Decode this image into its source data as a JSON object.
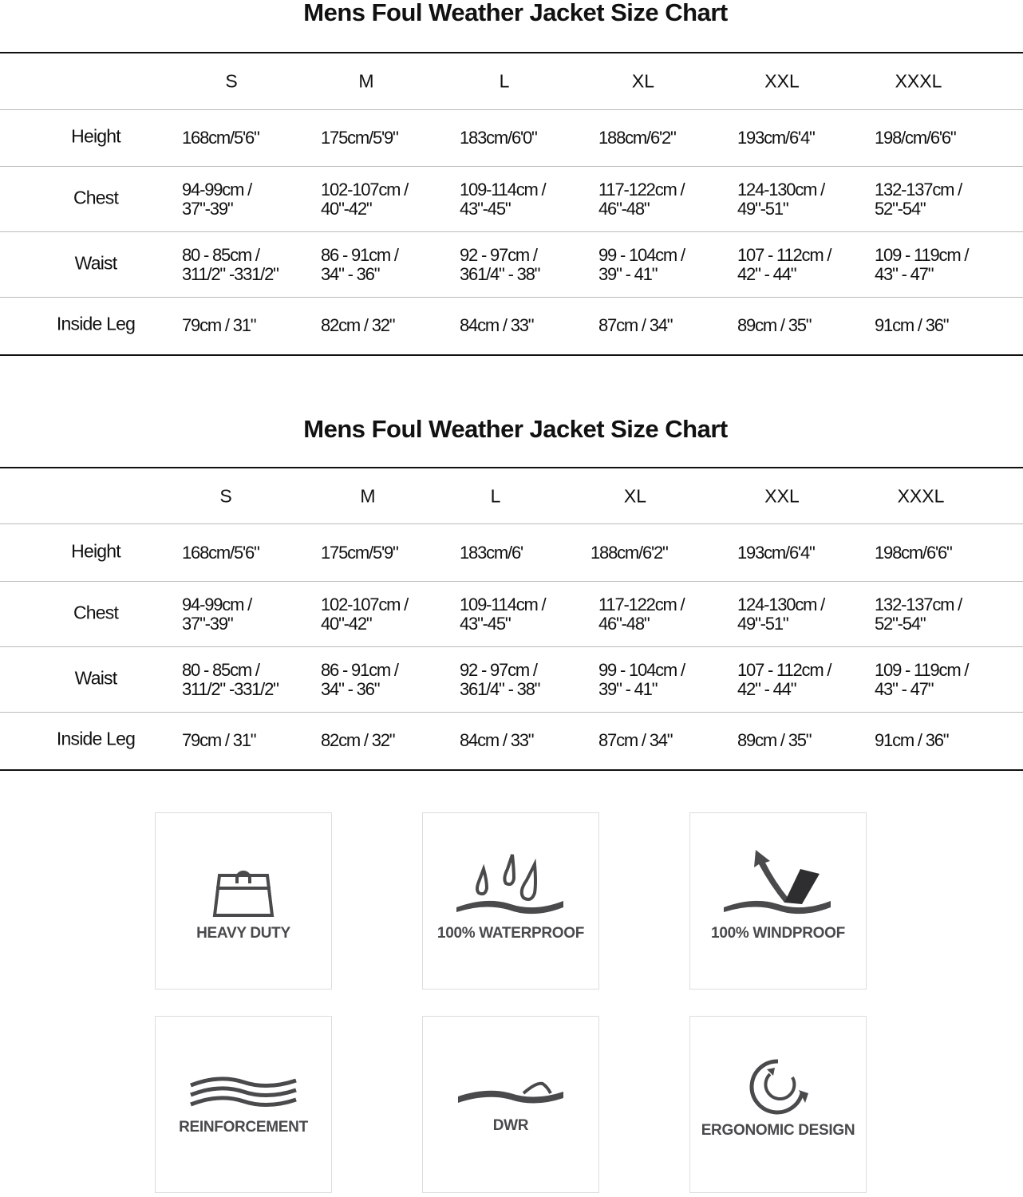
{
  "tables": [
    {
      "title": "Mens Foul Weather Jacket Size Chart",
      "sizes": [
        "S",
        "M",
        "L",
        "XL",
        "XXL",
        "XXXL"
      ],
      "rows": [
        {
          "label": "Height",
          "values": [
            [
              "168cm/5'6\""
            ],
            [
              "175cm/5'9\""
            ],
            [
              "183cm/6'0\""
            ],
            [
              "188cm/6'2\""
            ],
            [
              "193cm/6'4\""
            ],
            [
              "198/cm/6'6\""
            ]
          ]
        },
        {
          "label": "Chest",
          "values": [
            [
              "94-99cm /",
              "37\"-39\""
            ],
            [
              "102-107cm /",
              "40\"-42\""
            ],
            [
              "109-114cm /",
              "43\"-45\""
            ],
            [
              "117-122cm /",
              "46\"-48\""
            ],
            [
              "124-130cm /",
              "49\"-51\""
            ],
            [
              "132-137cm /",
              "52\"-54\""
            ]
          ]
        },
        {
          "label": "Waist",
          "values": [
            [
              "80 - 85cm /",
              "311/2\" -331/2\""
            ],
            [
              "86 - 91cm /",
              "34\" - 36\""
            ],
            [
              "92 - 97cm /",
              "361/4\" - 38\""
            ],
            [
              "99 - 104cm /",
              "39\" - 41\""
            ],
            [
              "107 - 112cm /",
              "42\" - 44\""
            ],
            [
              "109 - 119cm /",
              "43\" - 47\""
            ]
          ]
        },
        {
          "label": "Inside Leg",
          "values": [
            [
              "79cm / 31\""
            ],
            [
              "82cm / 32\""
            ],
            [
              "84cm / 33\""
            ],
            [
              "87cm / 34\""
            ],
            [
              "89cm / 35\""
            ],
            [
              "91cm / 36\""
            ]
          ]
        }
      ]
    },
    {
      "title": "Mens Foul Weather Jacket Size Chart",
      "sizes": [
        "S",
        "M",
        "L",
        "XL",
        "XXL",
        "XXXL"
      ],
      "rows": [
        {
          "label": "Height",
          "values": [
            [
              "168cm/5'6\""
            ],
            [
              "175cm/5'9\""
            ],
            [
              "183cm/6'"
            ],
            [
              "188cm/6'2\""
            ],
            [
              "193cm/6'4\""
            ],
            [
              "198cm/6'6\""
            ]
          ]
        },
        {
          "label": "Chest",
          "values": [
            [
              "94-99cm /",
              "37\"-39\""
            ],
            [
              "102-107cm /",
              "40\"-42\""
            ],
            [
              "109-114cm /",
              "43\"-45\""
            ],
            [
              "117-122cm /",
              "46\"-48\""
            ],
            [
              "124-130cm /",
              "49\"-51\""
            ],
            [
              "132-137cm /",
              "52\"-54\""
            ]
          ]
        },
        {
          "label": "Waist",
          "values": [
            [
              "80 - 85cm /",
              "311/2\" -331/2\""
            ],
            [
              "86 - 91cm /",
              "34\" - 36\""
            ],
            [
              "92 - 97cm /",
              "361/4\" - 38\""
            ],
            [
              "99 - 104cm /",
              "39\" - 41\""
            ],
            [
              "107 - 112cm /",
              "42\" - 44\""
            ],
            [
              "109 - 119cm /",
              "43\" - 47\""
            ]
          ]
        },
        {
          "label": "Inside Leg",
          "values": [
            [
              "79cm / 31\""
            ],
            [
              "82cm / 32\""
            ],
            [
              "84cm / 33\""
            ],
            [
              "87cm / 34\""
            ],
            [
              "89cm / 35\""
            ],
            [
              "91cm / 36\""
            ]
          ]
        }
      ]
    }
  ],
  "features": [
    {
      "label": "HEAVY DUTY",
      "icon": "bag-icon"
    },
    {
      "label": "100% WATERPROOF",
      "icon": "water-drops-icon"
    },
    {
      "label": "100% WINDPROOF",
      "icon": "wind-arrow-icon"
    },
    {
      "label": "REINFORCEMENT",
      "icon": "layered-waves-icon"
    },
    {
      "label": "DWR",
      "icon": "water-repellent-wave-icon"
    },
    {
      "label": "ERGONOMIC DESIGN",
      "icon": "rotation-arrows-icon"
    }
  ],
  "colors": {
    "icon": "#4a4a4c",
    "icon_dark": "#2e2e30",
    "border": "#dddddd",
    "text": "#111111"
  }
}
